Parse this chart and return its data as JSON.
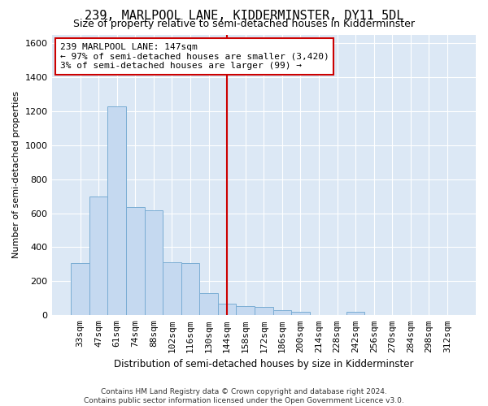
{
  "title": "239, MARLPOOL LANE, KIDDERMINSTER, DY11 5DL",
  "subtitle": "Size of property relative to semi-detached houses in Kidderminster",
  "xlabel": "Distribution of semi-detached houses by size in Kidderminster",
  "ylabel": "Number of semi-detached properties",
  "footer_line1": "Contains HM Land Registry data © Crown copyright and database right 2024.",
  "footer_line2": "Contains public sector information licensed under the Open Government Licence v3.0.",
  "annotation_title": "239 MARLPOOL LANE: 147sqm",
  "annotation_line1": "← 97% of semi-detached houses are smaller (3,420)",
  "annotation_line2": "3% of semi-detached houses are larger (99) →",
  "bar_color": "#c5d9f0",
  "bar_edge_color": "#7aadd4",
  "vline_color": "#cc0000",
  "background_color": "#dce8f5",
  "annotation_box_color": "#ffffff",
  "annotation_box_edge": "#cc0000",
  "categories": [
    "33sqm",
    "47sqm",
    "61sqm",
    "74sqm",
    "88sqm",
    "102sqm",
    "116sqm",
    "130sqm",
    "144sqm",
    "158sqm",
    "172sqm",
    "186sqm",
    "200sqm",
    "214sqm",
    "228sqm",
    "242sqm",
    "256sqm",
    "270sqm",
    "284sqm",
    "298sqm",
    "312sqm"
  ],
  "values": [
    305,
    700,
    1230,
    635,
    615,
    310,
    305,
    130,
    70,
    55,
    50,
    30,
    20,
    0,
    0,
    20,
    0,
    0,
    0,
    0,
    0
  ],
  "vline_index": 8,
  "ylim": [
    0,
    1650
  ],
  "yticks": [
    0,
    200,
    400,
    600,
    800,
    1000,
    1200,
    1400,
    1600
  ],
  "title_fontsize": 11,
  "subtitle_fontsize": 9,
  "ylabel_fontsize": 8,
  "xlabel_fontsize": 8.5,
  "tick_fontsize": 8,
  "footer_fontsize": 6.5,
  "annot_fontsize": 8
}
